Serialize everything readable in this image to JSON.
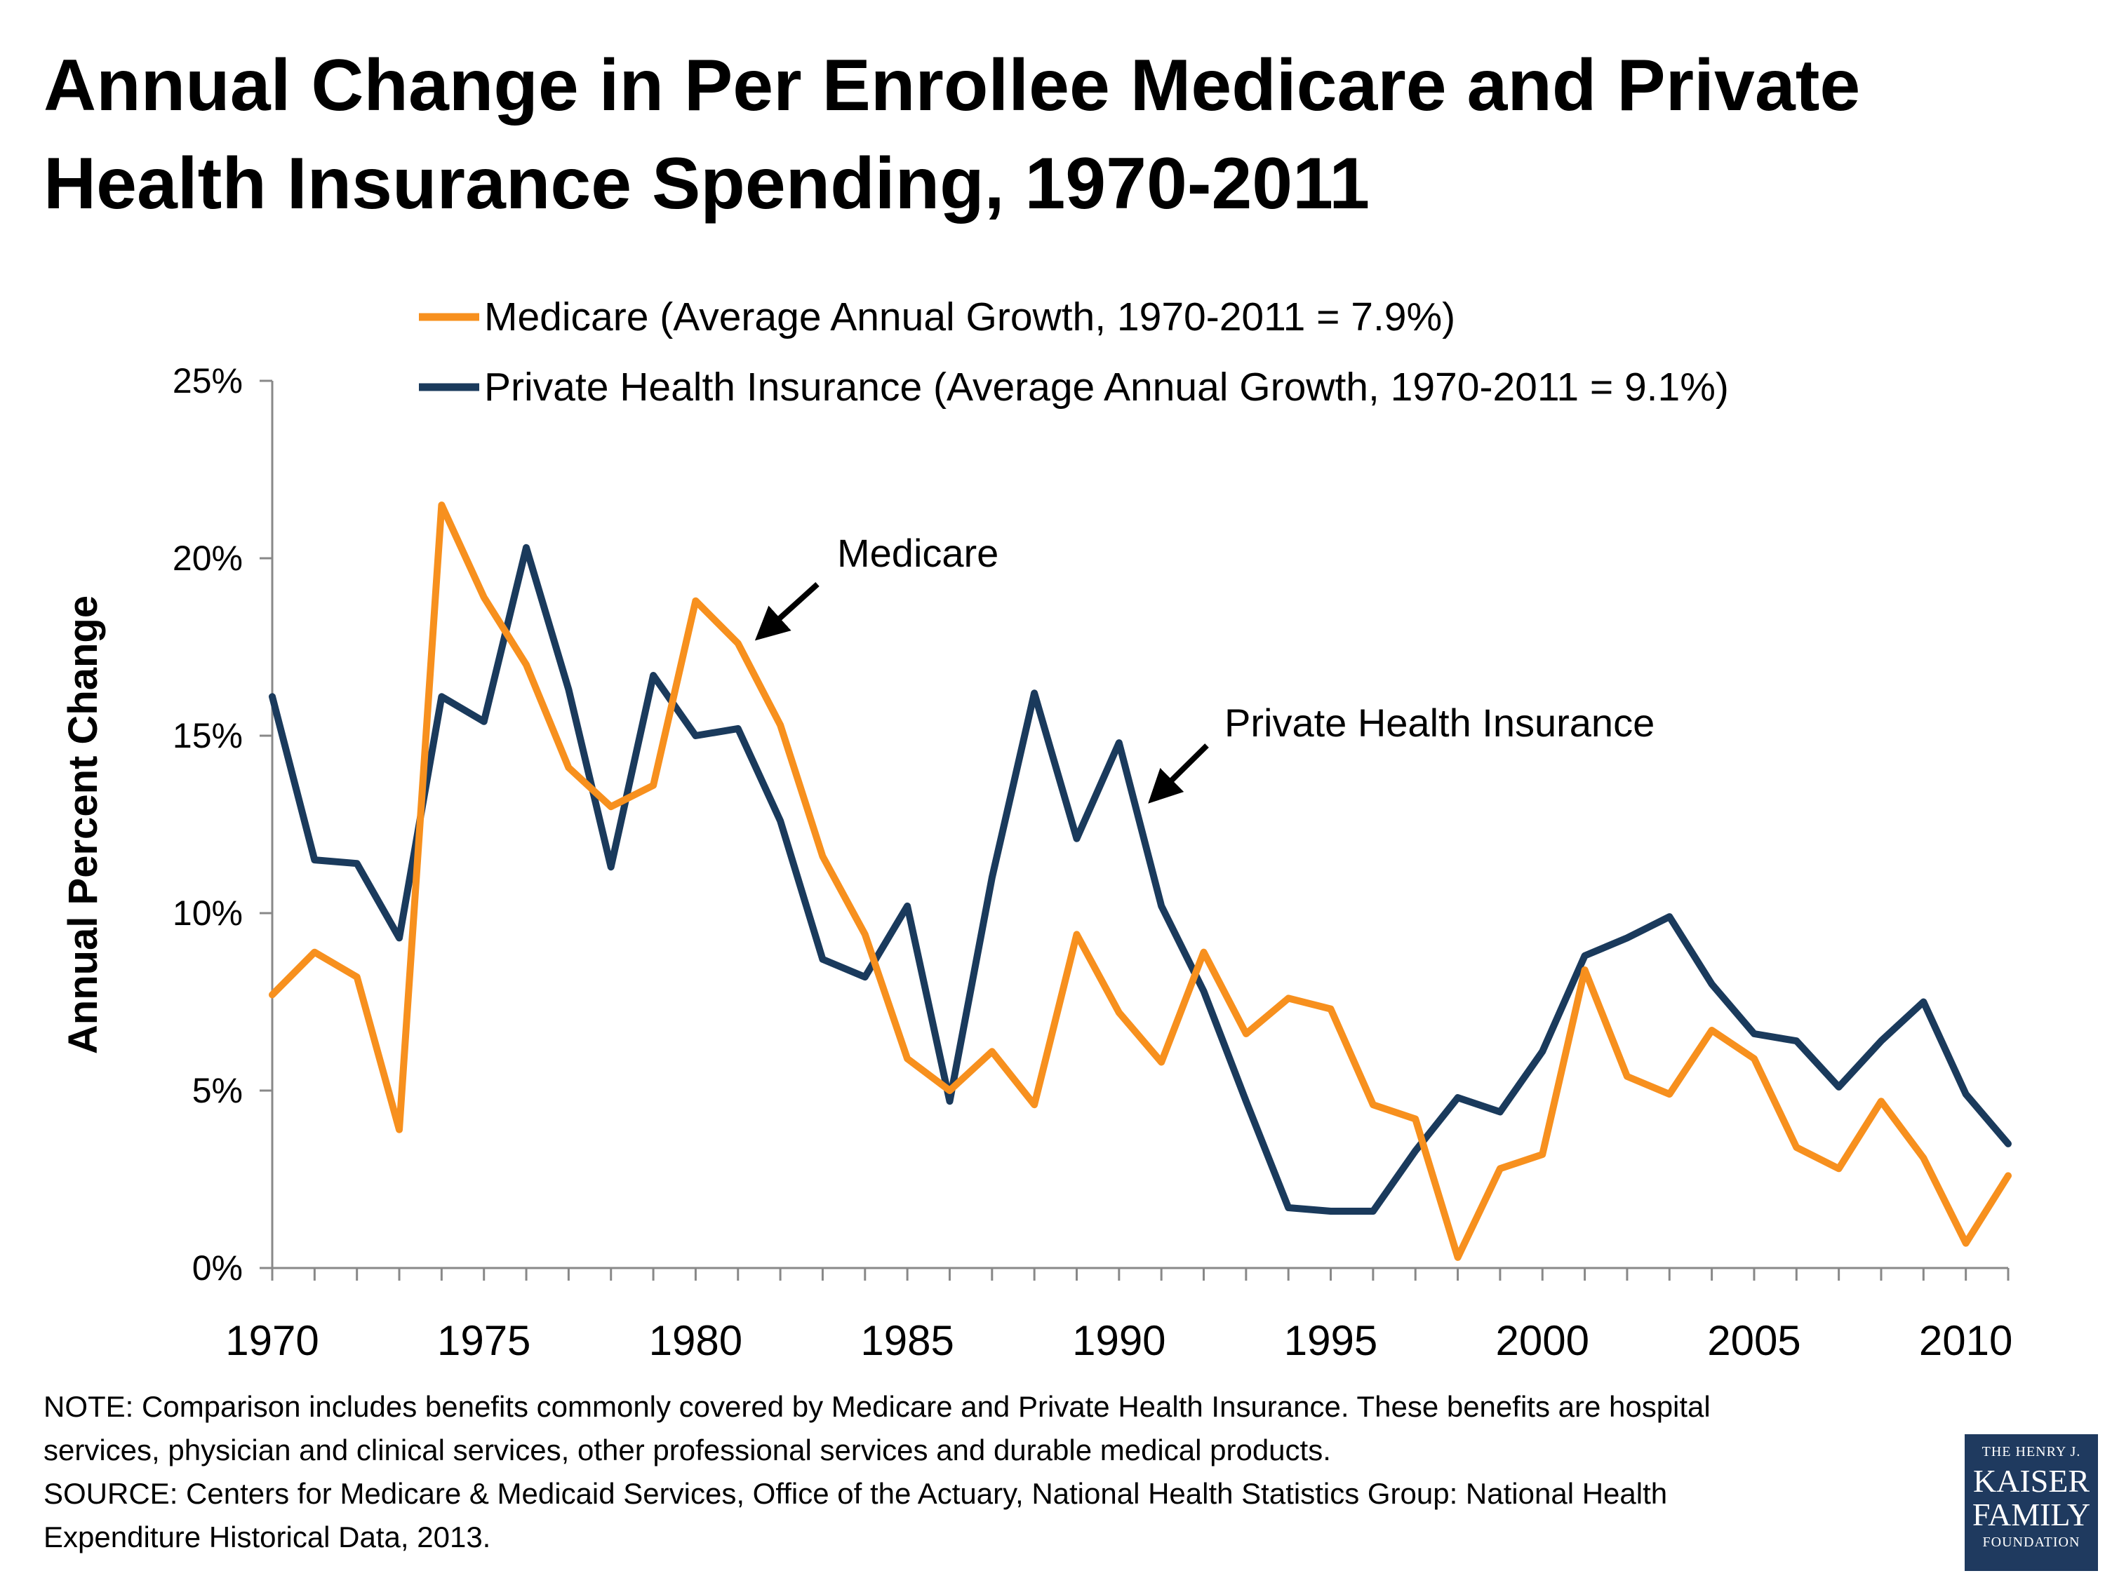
{
  "chart_data": {
    "type": "line",
    "title": "Annual Change in Per Enrollee Medicare and Private Health Insurance Spending, 1970-2011",
    "ylabel": "Annual Percent Change",
    "xlabel": "",
    "ylim": [
      0,
      25
    ],
    "xlim": [
      1970,
      2011
    ],
    "y_ticks": [
      "0%",
      "5%",
      "10%",
      "15%",
      "20%",
      "25%"
    ],
    "x_ticks": [
      "1970",
      "1975",
      "1980",
      "1985",
      "1990",
      "1995",
      "2000",
      "2005",
      "2010"
    ],
    "x": [
      1970,
      1971,
      1972,
      1973,
      1974,
      1975,
      1976,
      1977,
      1978,
      1979,
      1980,
      1981,
      1982,
      1983,
      1984,
      1985,
      1986,
      1987,
      1988,
      1989,
      1990,
      1991,
      1992,
      1993,
      1994,
      1995,
      1996,
      1997,
      1998,
      1999,
      2000,
      2001,
      2002,
      2003,
      2004,
      2005,
      2006,
      2007,
      2008,
      2009,
      2010,
      2011
    ],
    "series": [
      {
        "name": "Medicare",
        "legend": "Medicare (Average Annual Growth, 1970-2011 = 7.9%)",
        "color": "#F7901E",
        "values": [
          7.7,
          8.9,
          8.2,
          3.9,
          21.5,
          18.9,
          17.0,
          14.1,
          13.0,
          13.6,
          18.8,
          17.6,
          15.3,
          11.6,
          9.4,
          5.9,
          5.0,
          6.1,
          4.6,
          9.4,
          7.2,
          5.8,
          8.9,
          6.6,
          7.6,
          7.3,
          4.6,
          4.2,
          0.3,
          2.8,
          3.2,
          8.4,
          5.4,
          4.9,
          6.7,
          5.9,
          3.4,
          2.8,
          4.7,
          3.1,
          0.7,
          2.6
        ]
      },
      {
        "name": "Private Health Insurance",
        "legend": "Private Health Insurance (Average Annual Growth, 1970-2011 = 9.1%)",
        "color": "#1A3A5C",
        "values": [
          16.1,
          11.5,
          11.4,
          9.3,
          16.1,
          15.4,
          20.3,
          16.3,
          11.3,
          16.7,
          15.0,
          15.2,
          12.6,
          8.7,
          8.2,
          10.2,
          4.7,
          11.0,
          16.2,
          12.1,
          14.8,
          10.2,
          7.8,
          4.7,
          1.7,
          1.6,
          1.6,
          3.3,
          4.8,
          4.4,
          6.1,
          8.8,
          9.3,
          9.9,
          8.0,
          6.6,
          6.4,
          5.1,
          6.4,
          7.5,
          4.9,
          3.5
        ]
      }
    ],
    "annotations": [
      "Medicare",
      "Private Health Insurance"
    ]
  },
  "notes": {
    "note_line1": "NOTE: Comparison includes benefits commonly covered by Medicare and Private Health Insurance. These benefits are hospital",
    "note_line2": "services, physician and clinical services, other professional services and durable medical products.",
    "source_line1": "SOURCE:  Centers for Medicare & Medicaid Services, Office of the Actuary, National Health Statistics Group: National Health",
    "source_line2": "Expenditure Historical Data, 2013."
  },
  "logo": {
    "line1": "THE HENRY J.",
    "line2": "KAISER",
    "line3": "FAMILY",
    "line4": "FOUNDATION"
  }
}
